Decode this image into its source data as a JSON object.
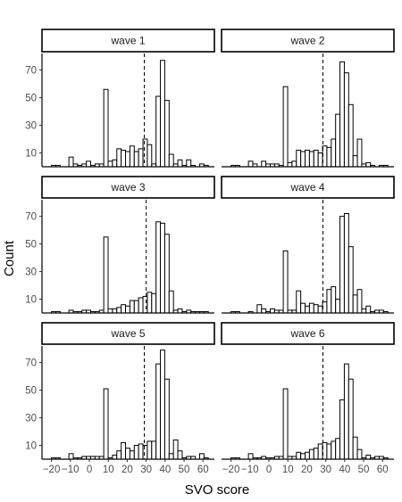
{
  "chart_data": {
    "type": "histogram-facets",
    "xlabel": "SVO score",
    "ylabel": "Count",
    "xlim": [
      -25,
      66
    ],
    "ylim": [
      0,
      82
    ],
    "xticks": [
      -20,
      -10,
      0,
      10,
      20,
      30,
      40,
      50,
      60
    ],
    "xtick_labels": [
      "−20",
      "−10",
      "0",
      "10",
      "20",
      "30",
      "40",
      "50",
      "60"
    ],
    "yticks": [
      10,
      30,
      50,
      70
    ],
    "bin_width": 2.3,
    "bin_starts": [
      -20,
      -17.7,
      -15.4,
      -13.1,
      -10.8,
      -8.5,
      -6.2,
      -3.9,
      -1.6,
      0.7,
      3.0,
      5.3,
      7.6,
      9.9,
      12.2,
      14.5,
      16.8,
      19.1,
      21.4,
      23.7,
      26.0,
      28.3,
      30.6,
      32.9,
      35.2,
      37.5,
      39.8,
      42.1,
      44.4,
      46.7,
      49.0,
      51.3,
      53.6,
      55.9,
      58.2,
      60.5
    ],
    "panels": [
      {
        "label": "wave 1",
        "mean": 29.0,
        "counts": [
          1,
          1,
          0,
          0,
          7,
          2,
          1,
          2,
          4,
          1,
          2,
          2,
          56,
          4,
          5,
          13,
          12,
          11,
          15,
          11,
          13,
          20,
          16,
          2,
          51,
          77,
          48,
          9,
          2,
          5,
          1,
          5,
          1,
          0,
          2,
          1
        ]
      },
      {
        "label": "wave 2",
        "mean": 28.5,
        "counts": [
          1,
          1,
          0,
          0,
          4,
          2,
          0,
          4,
          2,
          2,
          2,
          1,
          58,
          3,
          4,
          12,
          11,
          12,
          11,
          12,
          10,
          15,
          14,
          20,
          38,
          76,
          68,
          45,
          8,
          20,
          2,
          3,
          1,
          0,
          1,
          1
        ]
      },
      {
        "label": "wave 3",
        "mean": 30.0,
        "counts": [
          1,
          1,
          0,
          0,
          2,
          1,
          1,
          2,
          2,
          1,
          1,
          2,
          55,
          3,
          3,
          4,
          6,
          5,
          9,
          9,
          11,
          12,
          15,
          14,
          66,
          65,
          57,
          16,
          2,
          3,
          1,
          2,
          1,
          1,
          1,
          1
        ]
      },
      {
        "label": "wave 4",
        "mean": 28.5,
        "counts": [
          1,
          1,
          0,
          0,
          1,
          0,
          6,
          3,
          1,
          3,
          2,
          2,
          45,
          2,
          2,
          16,
          7,
          5,
          7,
          6,
          5,
          8,
          17,
          19,
          10,
          70,
          72,
          48,
          13,
          17,
          3,
          5,
          1,
          2,
          2,
          1
        ]
      },
      {
        "label": "wave 5",
        "mean": 29.0,
        "counts": [
          1,
          1,
          0,
          0,
          4,
          1,
          1,
          2,
          2,
          2,
          2,
          2,
          51,
          1,
          3,
          6,
          12,
          8,
          6,
          10,
          11,
          10,
          13,
          13,
          69,
          79,
          58,
          4,
          14,
          6,
          1,
          2,
          2,
          0,
          4,
          1
        ]
      },
      {
        "label": "wave 6",
        "mean": 28.5,
        "counts": [
          1,
          1,
          0,
          0,
          4,
          1,
          1,
          2,
          1,
          1,
          2,
          2,
          51,
          2,
          2,
          5,
          4,
          5,
          7,
          8,
          11,
          12,
          11,
          13,
          15,
          43,
          69,
          58,
          16,
          7,
          1,
          3,
          1,
          2,
          2,
          1
        ]
      }
    ]
  }
}
